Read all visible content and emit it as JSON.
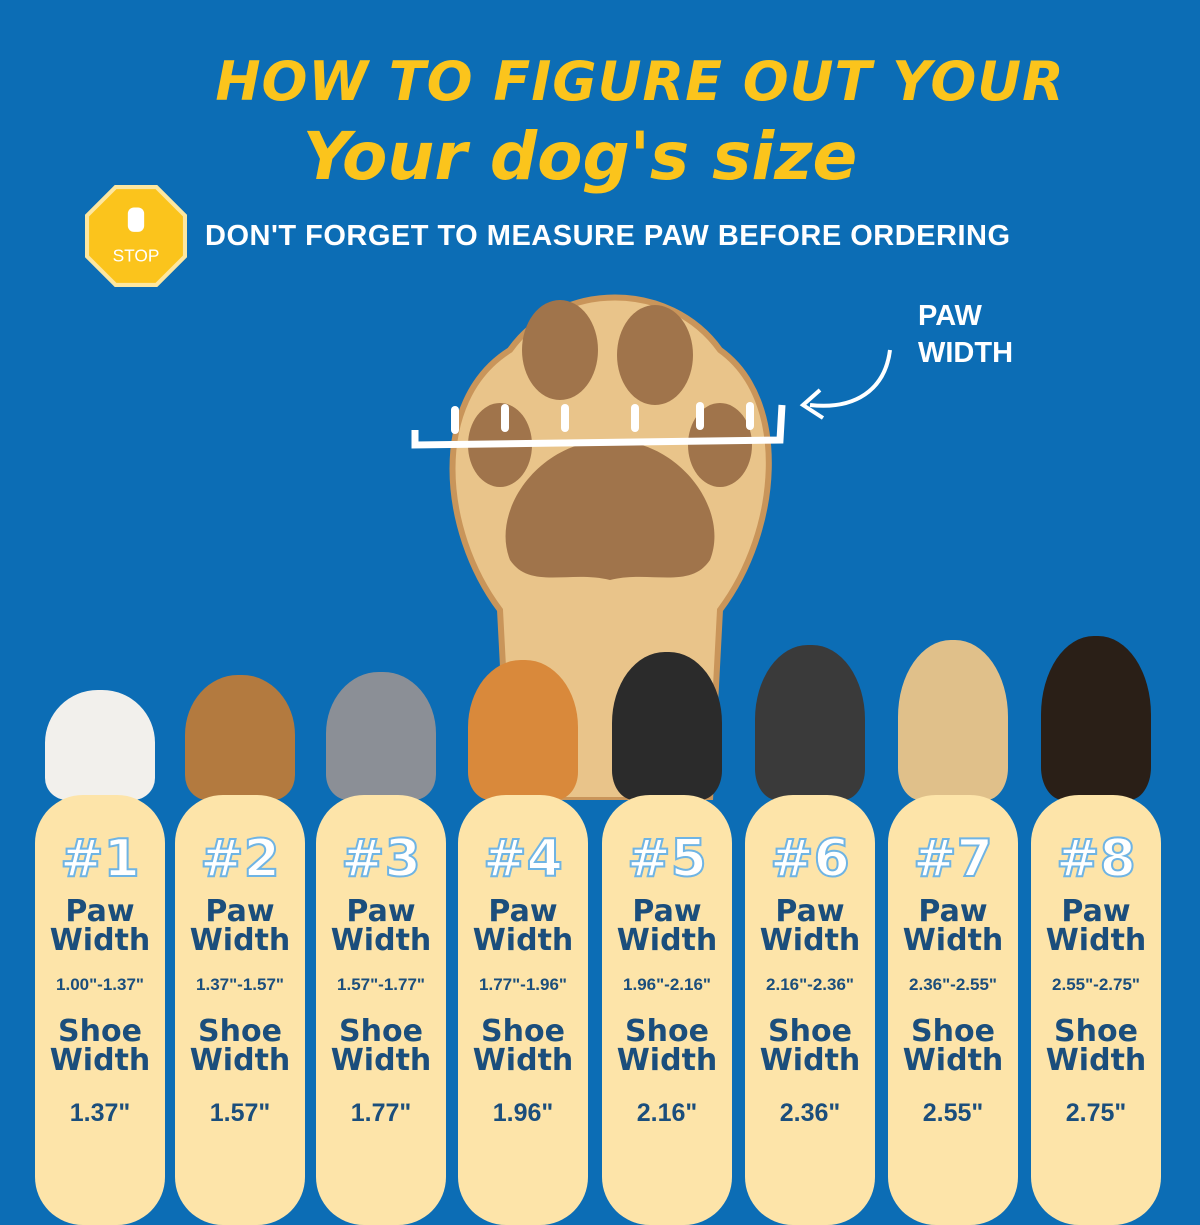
{
  "header": {
    "line1": "HOW TO FIGURE OUT YOUR",
    "line2": "Your dog's size",
    "reminder": "DON'T FORGET TO MEASURE PAW BEFORE ORDERING",
    "stop_sign_text": "STOP"
  },
  "diagram": {
    "label_line1": "PAW",
    "label_line2": "WIDTH"
  },
  "colors": {
    "background": "#0c6db5",
    "title": "#fbc41c",
    "card": "#fde4a9",
    "card_text": "#1b4e7c"
  },
  "sizes": [
    {
      "number": "#1",
      "paw_label_1": "Paw",
      "paw_label_2": "Width",
      "paw_range": "1.00\"-1.37\"",
      "shoe_label_1": "Shoe",
      "shoe_label_2": "Width",
      "shoe_width": "1.37\""
    },
    {
      "number": "#2",
      "paw_label_1": "Paw",
      "paw_label_2": "Width",
      "paw_range": "1.37\"-1.57\"",
      "shoe_label_1": "Shoe",
      "shoe_label_2": "Width",
      "shoe_width": "1.57\""
    },
    {
      "number": "#3",
      "paw_label_1": "Paw",
      "paw_label_2": "Width",
      "paw_range": "1.57\"-1.77\"",
      "shoe_label_1": "Shoe",
      "shoe_label_2": "Width",
      "shoe_width": "1.77\""
    },
    {
      "number": "#4",
      "paw_label_1": "Paw",
      "paw_label_2": "Width",
      "paw_range": "1.77\"-1.96\"",
      "shoe_label_1": "Shoe",
      "shoe_label_2": "Width",
      "shoe_width": "1.96\""
    },
    {
      "number": "#5",
      "paw_label_1": "Paw",
      "paw_label_2": "Width",
      "paw_range": "1.96\"-2.16\"",
      "shoe_label_1": "Shoe",
      "shoe_label_2": "Width",
      "shoe_width": "2.16\""
    },
    {
      "number": "#6",
      "paw_label_1": "Paw",
      "paw_label_2": "Width",
      "paw_range": "2.16\"-2.36\"",
      "shoe_label_1": "Shoe",
      "shoe_label_2": "Width",
      "shoe_width": "2.36\""
    },
    {
      "number": "#7",
      "paw_label_1": "Paw",
      "paw_label_2": "Width",
      "paw_range": "2.36\"-2.55\"",
      "shoe_label_1": "Shoe",
      "shoe_label_2": "Width",
      "shoe_width": "2.55\""
    },
    {
      "number": "#8",
      "paw_label_1": "Paw",
      "paw_label_2": "Width",
      "paw_range": "2.55\"-2.75\"",
      "shoe_label_1": "Shoe",
      "shoe_label_2": "Width",
      "shoe_width": "2.75\""
    }
  ]
}
